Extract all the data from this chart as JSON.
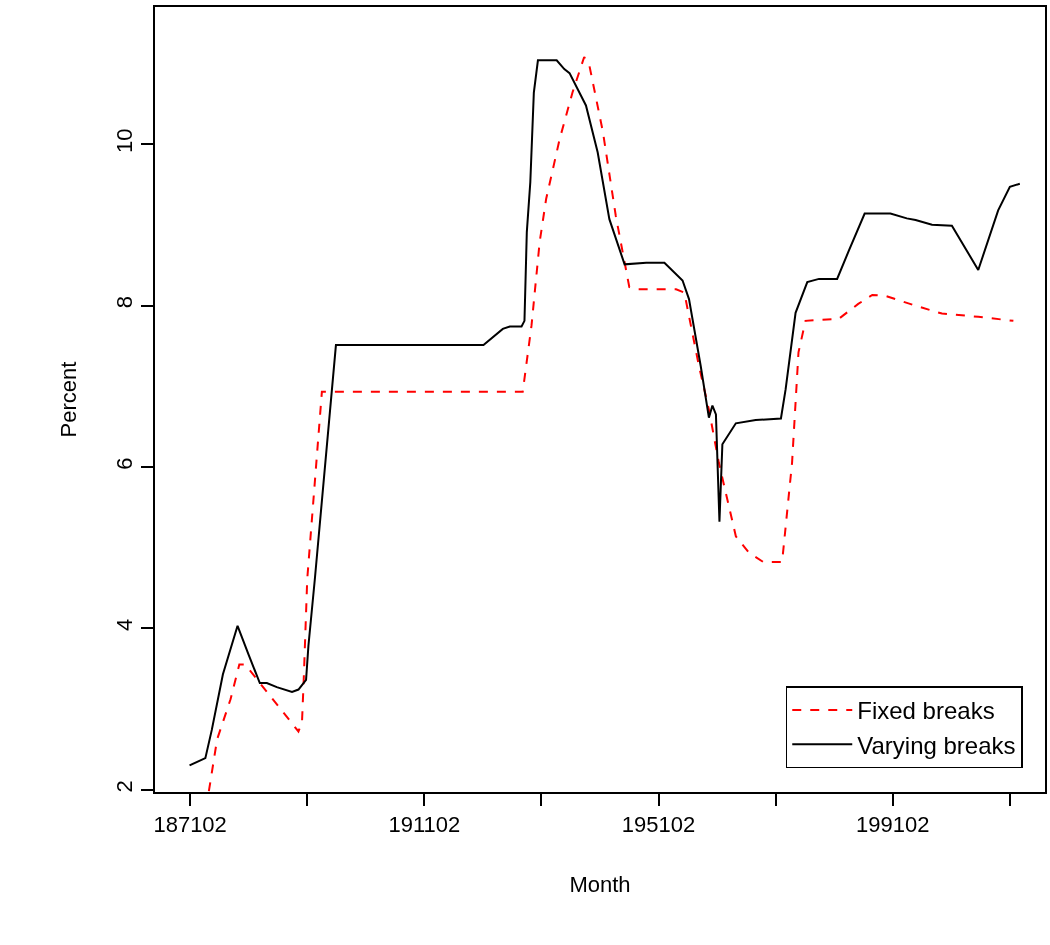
{
  "chart_data": {
    "type": "line",
    "xlabel": "Month",
    "ylabel": "Percent",
    "xlim": [
      186502,
      201702
    ],
    "ylim": [
      1.97,
      11.7
    ],
    "xticks": [
      187102,
      {
        "value": 189102,
        "label": null
      },
      191102,
      {
        "value": 193102,
        "label": null
      },
      195102,
      {
        "value": 197102,
        "label": null
      },
      199102,
      {
        "value": 201102,
        "label": null
      }
    ],
    "yticks": [
      2,
      4,
      6,
      8,
      10
    ],
    "legend": "bottom right",
    "marker": "none",
    "series": [
      {
        "name": "Fixed breaks",
        "color": "#ff0000",
        "line_style": "dashed",
        "x": [
          187422,
          187562,
          187792,
          187942,
          188042,
          188272,
          188952,
          189012,
          189042,
          189102,
          189352,
          192782,
          192932,
          193072,
          193182,
          193412,
          193632,
          193832,
          193922,
          194152,
          194372,
          194602,
          194722,
          195402,
          195542,
          195792,
          195962,
          196132,
          196422,
          196642,
          196892,
          197212,
          197382,
          197492,
          197612,
          198062,
          198172,
          198512,
          198752,
          198972,
          199482,
          199942,
          200562,
          201162
        ],
        "values": [
          1.98,
          2.62,
          3.12,
          3.55,
          3.55,
          3.34,
          2.72,
          2.83,
          3.36,
          4.61,
          6.93,
          6.93,
          7.75,
          8.79,
          9.32,
          10.06,
          10.64,
          11.08,
          10.97,
          10.15,
          9.11,
          8.23,
          8.2,
          8.2,
          8.16,
          7.25,
          6.71,
          6.05,
          5.14,
          4.94,
          4.82,
          4.82,
          6.05,
          7.42,
          7.81,
          7.83,
          7.83,
          8.02,
          8.13,
          8.12,
          8.0,
          7.9,
          7.86,
          7.81
        ]
      },
      {
        "name": "Varying breaks",
        "color": "#000000",
        "line_style": "solid",
        "x": [
          187092,
          187362,
          187472,
          187662,
          187912,
          188102,
          188292,
          188412,
          188582,
          188842,
          188952,
          189082,
          189122,
          189232,
          189592,
          192112,
          192442,
          192562,
          192762,
          192812,
          192852,
          192912,
          192972,
          193042,
          193362,
          193492,
          193582,
          193862,
          194062,
          194262,
          194522,
          194892,
          195202,
          195512,
          195622,
          195822,
          195962,
          196022,
          196082,
          196142,
          196192,
          196422,
          196762,
          197192,
          197272,
          197442,
          197642,
          197842,
          198152,
          198352,
          198622,
          199062,
          199342,
          199492,
          199772,
          200112,
          200562,
          200902,
          201102,
          201272
        ],
        "values": [
          2.3,
          2.39,
          2.74,
          3.43,
          4.03,
          3.67,
          3.32,
          3.32,
          3.27,
          3.21,
          3.24,
          3.36,
          3.78,
          4.61,
          7.51,
          7.51,
          7.71,
          7.74,
          7.74,
          7.81,
          8.91,
          9.53,
          10.64,
          11.04,
          11.04,
          10.93,
          10.88,
          10.48,
          9.9,
          9.07,
          8.51,
          8.53,
          8.53,
          8.31,
          8.08,
          7.25,
          6.61,
          6.76,
          6.65,
          5.32,
          6.28,
          6.54,
          6.58,
          6.6,
          6.96,
          7.91,
          8.29,
          8.33,
          8.33,
          8.68,
          9.14,
          9.14,
          9.08,
          9.06,
          9.0,
          8.99,
          8.44,
          9.18,
          9.47,
          9.51
        ]
      }
    ]
  }
}
